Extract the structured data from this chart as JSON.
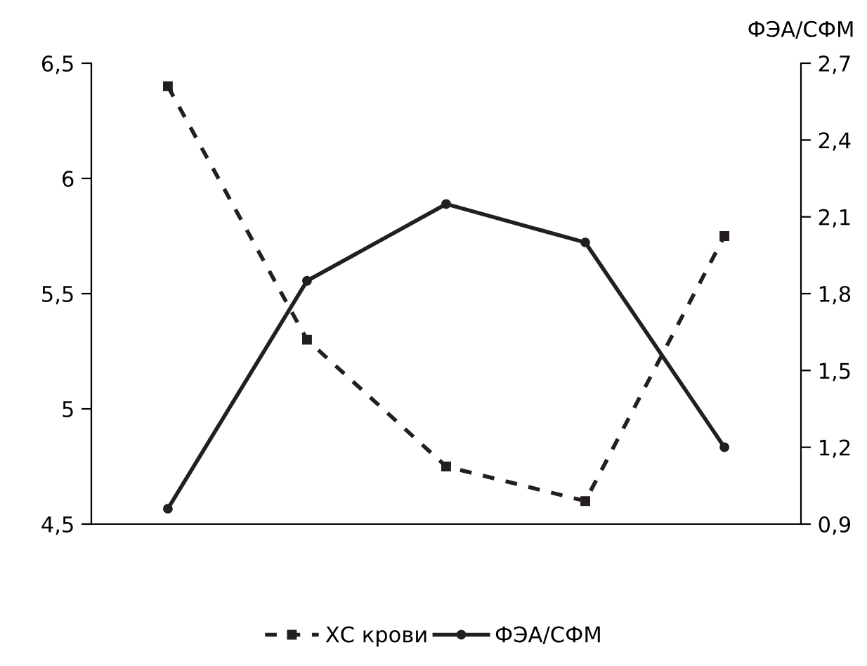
{
  "chart_data": {
    "type": "line",
    "categories": [
      null,
      null,
      null,
      null,
      null
    ],
    "y2label": "ФЭА/СФМ",
    "ylim": [
      4.5,
      6.5
    ],
    "yticks": [
      {
        "value": 4.5,
        "label": "4,5"
      },
      5,
      {
        "value": 5.5,
        "label": "5,5"
      },
      6,
      {
        "value": 6.5,
        "label": "6,5"
      }
    ],
    "y2lim": [
      0.9,
      2.7
    ],
    "y2ticks": [
      {
        "value": 0.9,
        "label": "0,9"
      },
      {
        "value": 1.2,
        "label": "1,2"
      },
      {
        "value": 1.5,
        "label": "1,5"
      },
      {
        "value": 1.8,
        "label": "1,8"
      },
      {
        "value": 2.1,
        "label": "2,1"
      },
      {
        "value": 2.4,
        "label": "2,4"
      },
      {
        "value": 2.7,
        "label": "2,7"
      }
    ],
    "grid": false,
    "legend": "bottom",
    "series": [
      {
        "name": "ХС крови",
        "color": "#231f20",
        "values": [
          6.4,
          5.3,
          4.75,
          4.6,
          5.75
        ],
        "marker": "square",
        "line_style": "dashed"
      },
      {
        "name": "ФЭА/СФМ",
        "color": "#231f20",
        "values": [
          0.96,
          1.85,
          2.15,
          2.0,
          1.2
        ],
        "marker": "circle",
        "line_style": "solid",
        "axis": "y2"
      }
    ]
  }
}
